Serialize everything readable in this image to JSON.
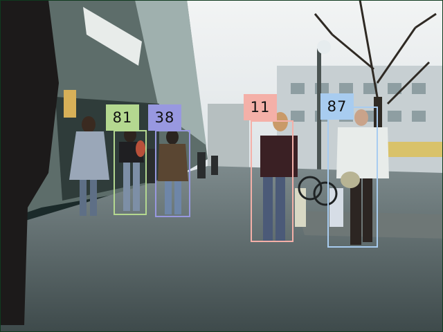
{
  "detections": [
    {
      "label": "81",
      "color": "#b4d890"
    },
    {
      "label": "38",
      "color": "#9898e0"
    },
    {
      "label": "11",
      "color": "#f4b0a8"
    },
    {
      "label": "87",
      "color": "#a8ccf0"
    }
  ]
}
